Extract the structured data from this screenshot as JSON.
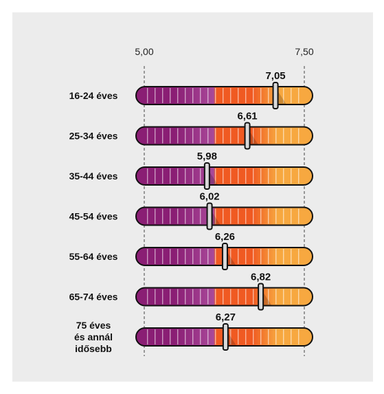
{
  "chart_data": {
    "type": "bar",
    "categories": [
      [
        "16-24 éves"
      ],
      [
        "25-34 éves"
      ],
      [
        "35-44 éves"
      ],
      [
        "45-54 éves"
      ],
      [
        "55-64 éves"
      ],
      [
        "65-74 éves"
      ],
      [
        "75 éves",
        "és annál",
        "idősebb"
      ]
    ],
    "values": [
      7.05,
      6.61,
      5.98,
      6.02,
      6.26,
      6.82,
      6.27
    ],
    "value_labels": [
      "7,05",
      "6,61",
      "5,98",
      "6,02",
      "6,26",
      "6,82",
      "6,27"
    ],
    "xlim": [
      5.0,
      7.5
    ],
    "xticks": [
      5.0,
      7.5
    ],
    "xtick_labels": [
      "5,00",
      "7,50"
    ],
    "gradient_colors": [
      "#8a1e74",
      "#a9499a",
      "#f05a22",
      "#f7a840"
    ],
    "grid": "dashed reference lines at 5,00 and 7,50"
  }
}
